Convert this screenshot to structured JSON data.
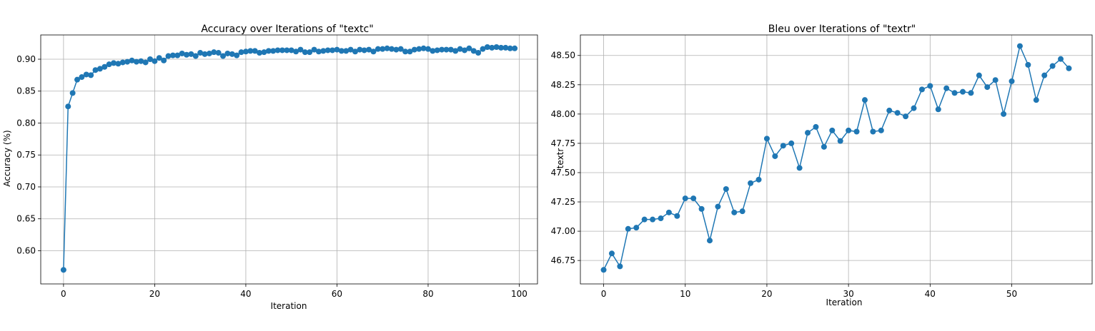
{
  "chart_data": [
    {
      "type": "line",
      "title": "Accuracy over Iterations of \"textc\"",
      "xlabel": "Iteration",
      "ylabel": "Accuracy (%)",
      "xlim": [
        -5,
        104
      ],
      "ylim": [
        0.548,
        0.938
      ],
      "xticks": [
        0,
        20,
        40,
        60,
        80,
        100
      ],
      "yticks": [
        0.6,
        0.65,
        0.7,
        0.75,
        0.8,
        0.85,
        0.9
      ],
      "ytick_decimals": 2,
      "grid": true,
      "markers": true,
      "color": "#1f77b4",
      "series": [
        {
          "x": [
            0,
            1,
            2,
            3,
            4,
            5,
            6,
            7,
            8,
            9,
            10,
            11,
            12,
            13,
            14,
            15,
            16,
            17,
            18,
            19,
            20,
            21,
            22,
            23,
            24,
            25,
            26,
            27,
            28,
            29,
            30,
            31,
            32,
            33,
            34,
            35,
            36,
            37,
            38,
            39,
            40,
            41,
            42,
            43,
            44,
            45,
            46,
            47,
            48,
            49,
            50,
            51,
            52,
            53,
            54,
            55,
            56,
            57,
            58,
            59,
            60,
            61,
            62,
            63,
            64,
            65,
            66,
            67,
            68,
            69,
            70,
            71,
            72,
            73,
            74,
            75,
            76,
            77,
            78,
            79,
            80,
            81,
            82,
            83,
            84,
            85,
            86,
            87,
            88,
            89,
            90,
            91,
            92,
            93,
            94,
            95,
            96,
            97,
            98,
            99
          ],
          "y": [
            0.57,
            0.826,
            0.847,
            0.868,
            0.872,
            0.876,
            0.875,
            0.883,
            0.885,
            0.888,
            0.892,
            0.894,
            0.893,
            0.895,
            0.896,
            0.898,
            0.896,
            0.897,
            0.895,
            0.9,
            0.897,
            0.902,
            0.898,
            0.905,
            0.906,
            0.906,
            0.909,
            0.907,
            0.908,
            0.905,
            0.91,
            0.908,
            0.909,
            0.911,
            0.91,
            0.905,
            0.909,
            0.908,
            0.906,
            0.911,
            0.912,
            0.913,
            0.913,
            0.91,
            0.911,
            0.913,
            0.913,
            0.914,
            0.914,
            0.914,
            0.914,
            0.912,
            0.915,
            0.911,
            0.911,
            0.915,
            0.912,
            0.913,
            0.914,
            0.914,
            0.915,
            0.913,
            0.913,
            0.915,
            0.912,
            0.915,
            0.914,
            0.915,
            0.912,
            0.916,
            0.916,
            0.917,
            0.916,
            0.915,
            0.916,
            0.912,
            0.912,
            0.915,
            0.916,
            0.917,
            0.916,
            0.913,
            0.914,
            0.915,
            0.915,
            0.915,
            0.913,
            0.916,
            0.914,
            0.917,
            0.913,
            0.91,
            0.916,
            0.919,
            0.918,
            0.919,
            0.918,
            0.918,
            0.917,
            0.917
          ]
        }
      ]
    },
    {
      "type": "line",
      "title": "Bleu over Iterations of \"textr\"",
      "xlabel": "Iteration",
      "ylabel": "textr",
      "xlim": [
        -2.85,
        59.85
      ],
      "ylim": [
        46.55,
        48.675
      ],
      "xticks": [
        0,
        10,
        20,
        30,
        40,
        50
      ],
      "yticks": [
        46.75,
        47.0,
        47.25,
        47.5,
        47.75,
        48.0,
        48.25,
        48.5
      ],
      "ytick_decimals": 2,
      "grid": true,
      "markers": true,
      "color": "#1f77b4",
      "series": [
        {
          "x": [
            0,
            1,
            2,
            3,
            4,
            5,
            6,
            7,
            8,
            9,
            10,
            11,
            12,
            13,
            14,
            15,
            16,
            17,
            18,
            19,
            20,
            21,
            22,
            23,
            24,
            25,
            26,
            27,
            28,
            29,
            30,
            31,
            32,
            33,
            34,
            35,
            36,
            37,
            38,
            39,
            40,
            41,
            42,
            43,
            44,
            45,
            46,
            47,
            48,
            49,
            50,
            51,
            52,
            53,
            54,
            55,
            56,
            57
          ],
          "y": [
            46.67,
            46.81,
            46.7,
            47.02,
            47.03,
            47.1,
            47.1,
            47.11,
            47.16,
            47.13,
            47.28,
            47.28,
            47.19,
            46.92,
            47.21,
            47.36,
            47.16,
            47.17,
            47.41,
            47.44,
            47.79,
            47.64,
            47.73,
            47.75,
            47.54,
            47.84,
            47.89,
            47.72,
            47.86,
            47.77,
            47.86,
            47.85,
            48.12,
            47.85,
            47.86,
            48.03,
            48.01,
            47.98,
            48.05,
            48.21,
            48.24,
            48.04,
            48.22,
            48.18,
            48.19,
            48.18,
            48.33,
            48.23,
            48.29,
            48.0,
            48.28,
            48.58,
            48.42,
            48.12,
            48.33,
            48.41,
            48.47,
            48.39
          ]
        }
      ]
    }
  ]
}
